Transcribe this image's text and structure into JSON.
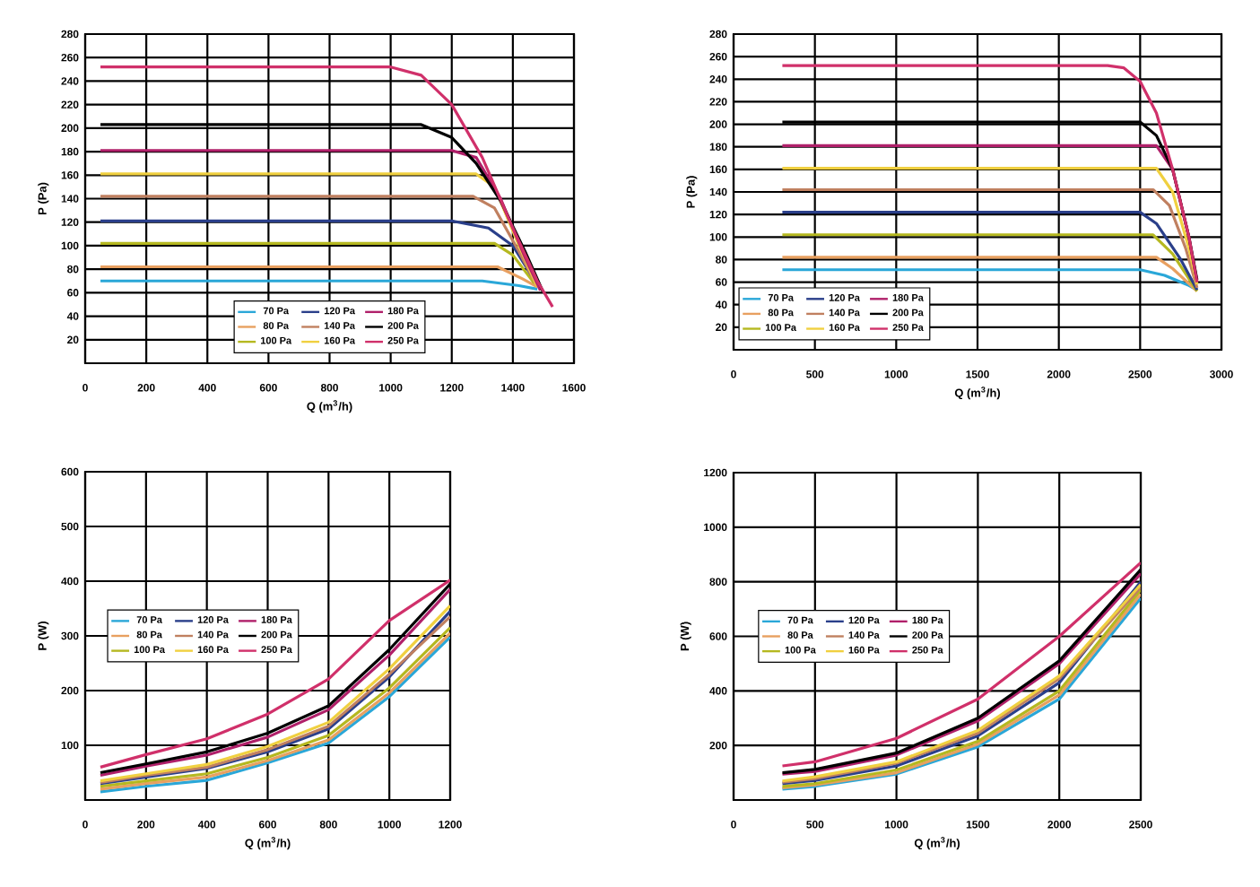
{
  "chart_data": [
    {
      "type": "line",
      "xlabel": "Q (m$^{3}$/h)",
      "ylabel": "P (Pa)",
      "xlim": [
        0,
        1600
      ],
      "ylim": [
        0,
        280
      ],
      "xticks": [
        0,
        200,
        400,
        600,
        800,
        1000,
        1200,
        1400,
        1600
      ],
      "yticks": [
        20,
        40,
        60,
        80,
        100,
        120,
        140,
        160,
        180,
        200,
        220,
        240,
        260,
        280
      ],
      "grid": true,
      "legend": "bottom",
      "series": [
        {
          "name": "70 Pa",
          "color": "#2aa7d8",
          "x": [
            50,
            1300,
            1420,
            1480
          ],
          "values": [
            70,
            70,
            66,
            63
          ]
        },
        {
          "name": "80 Pa",
          "color": "#e8a060",
          "x": [
            50,
            1350,
            1430,
            1480
          ],
          "values": [
            82,
            82,
            72,
            65
          ]
        },
        {
          "name": "100 Pa",
          "color": "#b5b820",
          "x": [
            50,
            1340,
            1400,
            1470
          ],
          "values": [
            102,
            102,
            92,
            68
          ]
        },
        {
          "name": "120 Pa",
          "color": "#2a3f8a",
          "x": [
            50,
            1200,
            1320,
            1400,
            1460
          ],
          "values": [
            121,
            121,
            115,
            100,
            75
          ]
        },
        {
          "name": "140 Pa",
          "color": "#c08060",
          "x": [
            50,
            1270,
            1340,
            1420,
            1480
          ],
          "values": [
            142,
            142,
            132,
            95,
            65
          ]
        },
        {
          "name": "160 Pa",
          "color": "#f0d040",
          "x": [
            50,
            1280,
            1340,
            1420,
            1480
          ],
          "values": [
            161,
            161,
            150,
            100,
            65
          ]
        },
        {
          "name": "180 Pa",
          "color": "#b0206a",
          "x": [
            50,
            1200,
            1280,
            1360,
            1440,
            1490
          ],
          "values": [
            181,
            181,
            175,
            140,
            90,
            62
          ]
        },
        {
          "name": "200 Pa",
          "color": "#000000",
          "x": [
            50,
            1100,
            1200,
            1280,
            1360,
            1440,
            1500
          ],
          "values": [
            203,
            203,
            192,
            170,
            138,
            95,
            60
          ]
        },
        {
          "name": "250 Pa",
          "color": "#d0306a",
          "x": [
            50,
            1000,
            1100,
            1200,
            1300,
            1400,
            1480,
            1530
          ],
          "values": [
            252,
            252,
            245,
            220,
            175,
            115,
            70,
            48
          ]
        }
      ]
    },
    {
      "type": "line",
      "xlabel": "Q (m$^{3}$/h)",
      "ylabel": "P (Pa)",
      "xlim": [
        0,
        3000
      ],
      "ylim": [
        0,
        280
      ],
      "xticks": [
        0,
        500,
        1000,
        1500,
        2000,
        2500,
        3000
      ],
      "yticks": [
        20,
        40,
        60,
        80,
        100,
        120,
        140,
        160,
        180,
        200,
        220,
        240,
        260,
        280
      ],
      "grid": true,
      "legend": "bottom left",
      "series": [
        {
          "name": "70 Pa",
          "color": "#2aa7d8",
          "x": [
            300,
            2500,
            2650,
            2800,
            2850
          ],
          "values": [
            71,
            71,
            66,
            57,
            53
          ]
        },
        {
          "name": "80 Pa",
          "color": "#e8a060",
          "x": [
            300,
            2600,
            2700,
            2850
          ],
          "values": [
            82,
            82,
            72,
            52
          ]
        },
        {
          "name": "100 Pa",
          "color": "#b5b820",
          "x": [
            300,
            2580,
            2700,
            2850
          ],
          "values": [
            102,
            102,
            85,
            52
          ]
        },
        {
          "name": "120 Pa",
          "color": "#2a3f8a",
          "x": [
            300,
            2500,
            2600,
            2750,
            2850
          ],
          "values": [
            122,
            122,
            112,
            80,
            53
          ]
        },
        {
          "name": "140 Pa",
          "color": "#c08060",
          "x": [
            300,
            2580,
            2680,
            2780,
            2850
          ],
          "values": [
            142,
            142,
            128,
            90,
            55
          ]
        },
        {
          "name": "160 Pa",
          "color": "#f0d040",
          "x": [
            300,
            2600,
            2700,
            2800,
            2850
          ],
          "values": [
            161,
            161,
            140,
            90,
            58
          ]
        },
        {
          "name": "180 Pa",
          "color": "#b0206a",
          "x": [
            300,
            2600,
            2700,
            2800,
            2850
          ],
          "values": [
            181,
            181,
            160,
            100,
            60
          ]
        },
        {
          "name": "200 Pa",
          "color": "#000000",
          "x": [
            300,
            2500,
            2600,
            2700,
            2800,
            2850
          ],
          "values": [
            202,
            202,
            190,
            160,
            100,
            62
          ]
        },
        {
          "name": "250 Pa",
          "color": "#d0306a",
          "x": [
            300,
            2300,
            2400,
            2500,
            2600,
            2700,
            2800,
            2850
          ],
          "values": [
            252,
            252,
            250,
            238,
            210,
            160,
            100,
            60
          ]
        }
      ]
    },
    {
      "type": "line",
      "xlabel": "Q (m$^{3}$/h)",
      "ylabel": "P (W)",
      "xlim": [
        0,
        1200
      ],
      "ylim": [
        0,
        600
      ],
      "xticks": [
        0,
        200,
        400,
        600,
        800,
        1000,
        1200
      ],
      "yticks": [
        100,
        200,
        300,
        400,
        500,
        600
      ],
      "grid": true,
      "legend": "left",
      "series": [
        {
          "name": "70 Pa",
          "color": "#2aa7d8",
          "x": [
            50,
            200,
            400,
            600,
            800,
            1000,
            1200
          ],
          "values": [
            15,
            25,
            36,
            68,
            104,
            189,
            298
          ]
        },
        {
          "name": "80 Pa",
          "color": "#e8a060",
          "x": [
            50,
            200,
            400,
            600,
            800,
            1000,
            1200
          ],
          "values": [
            20,
            30,
            42,
            72,
            110,
            196,
            305
          ]
        },
        {
          "name": "100 Pa",
          "color": "#b5b820",
          "x": [
            50,
            200,
            400,
            600,
            800,
            1000,
            1200
          ],
          "values": [
            25,
            35,
            48,
            78,
            118,
            205,
            315
          ]
        },
        {
          "name": "120 Pa",
          "color": "#2a3f8a",
          "x": [
            50,
            200,
            400,
            600,
            800,
            1000,
            1200
          ],
          "values": [
            30,
            42,
            58,
            88,
            130,
            225,
            345
          ]
        },
        {
          "name": "140 Pa",
          "color": "#c08060",
          "x": [
            50,
            200,
            400,
            600,
            800,
            1000,
            1200
          ],
          "values": [
            32,
            45,
            60,
            92,
            135,
            230,
            335
          ]
        },
        {
          "name": "160 Pa",
          "color": "#f0d040",
          "x": [
            50,
            200,
            400,
            600,
            800,
            1000,
            1200
          ],
          "values": [
            35,
            48,
            65,
            98,
            142,
            240,
            355
          ]
        },
        {
          "name": "180 Pa",
          "color": "#b0206a",
          "x": [
            50,
            200,
            400,
            600,
            800,
            1000,
            1200
          ],
          "values": [
            45,
            62,
            82,
            115,
            165,
            265,
            385
          ]
        },
        {
          "name": "200 Pa",
          "color": "#000000",
          "x": [
            50,
            200,
            400,
            600,
            800,
            1000,
            1200
          ],
          "values": [
            50,
            66,
            88,
            122,
            172,
            275,
            395
          ]
        },
        {
          "name": "250 Pa",
          "color": "#d0306a",
          "x": [
            50,
            200,
            400,
            600,
            800,
            1000,
            1200
          ],
          "values": [
            60,
            83,
            112,
            157,
            221,
            328,
            402
          ]
        }
      ]
    },
    {
      "type": "line",
      "xlabel": "Q (m$^{3}$/h)",
      "ylabel": "P (W)",
      "xlim": [
        0,
        2500
      ],
      "ylim": [
        0,
        1200
      ],
      "xticks": [
        0,
        500,
        1000,
        1500,
        2000,
        2500
      ],
      "yticks": [
        200,
        400,
        600,
        800,
        1000,
        1200
      ],
      "grid": true,
      "legend": "left",
      "series": [
        {
          "name": "70 Pa",
          "color": "#2aa7d8",
          "x": [
            300,
            500,
            1000,
            1500,
            2000,
            2500
          ],
          "values": [
            40,
            50,
            95,
            195,
            370,
            740
          ]
        },
        {
          "name": "80 Pa",
          "color": "#e8a060",
          "x": [
            300,
            500,
            1000,
            1500,
            2000,
            2500
          ],
          "values": [
            45,
            55,
            100,
            205,
            385,
            755
          ]
        },
        {
          "name": "100 Pa",
          "color": "#b5b820",
          "x": [
            300,
            500,
            1000,
            1500,
            2000,
            2500
          ],
          "values": [
            50,
            60,
            110,
            215,
            400,
            770
          ]
        },
        {
          "name": "120 Pa",
          "color": "#2a3f8a",
          "x": [
            300,
            500,
            1000,
            1500,
            2000,
            2500
          ],
          "values": [
            60,
            72,
            125,
            235,
            430,
            800
          ]
        },
        {
          "name": "140 Pa",
          "color": "#c08060",
          "x": [
            300,
            500,
            1000,
            1500,
            2000,
            2500
          ],
          "values": [
            65,
            78,
            135,
            245,
            445,
            780
          ]
        },
        {
          "name": "160 Pa",
          "color": "#f0d040",
          "x": [
            300,
            500,
            1000,
            1500,
            2000,
            2500
          ],
          "values": [
            70,
            85,
            140,
            255,
            455,
            790
          ]
        },
        {
          "name": "180 Pa",
          "color": "#b0206a",
          "x": [
            300,
            500,
            1000,
            1500,
            2000,
            2500
          ],
          "values": [
            95,
            105,
            165,
            290,
            500,
            830
          ]
        },
        {
          "name": "200 Pa",
          "color": "#000000",
          "x": [
            300,
            500,
            1000,
            1500,
            2000,
            2500
          ],
          "values": [
            100,
            112,
            172,
            300,
            510,
            845
          ]
        },
        {
          "name": "250 Pa",
          "color": "#d0306a",
          "x": [
            300,
            500,
            1000,
            1500,
            2000,
            2500
          ],
          "values": [
            125,
            140,
            226,
            370,
            600,
            870
          ]
        }
      ]
    }
  ]
}
